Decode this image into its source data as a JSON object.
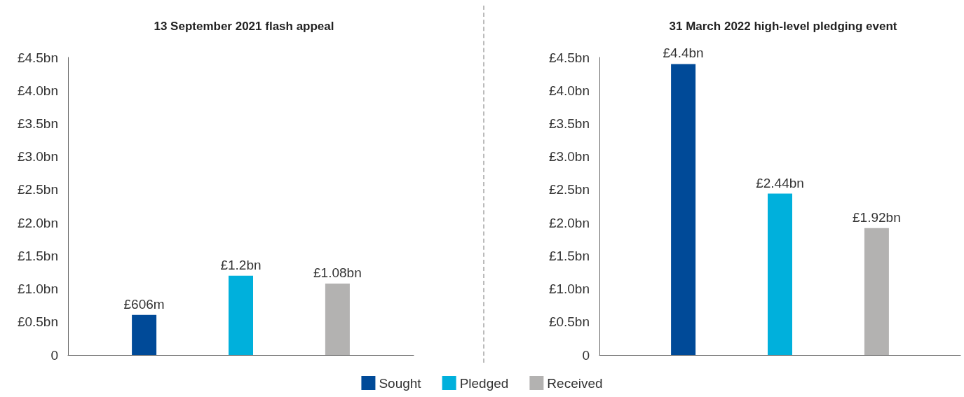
{
  "chart_data": [
    {
      "type": "bar",
      "title": "13 September 2021 flash appeal",
      "categories": [
        null
      ],
      "series": [
        {
          "name": "Sought",
          "color": "#004a98",
          "values": [
            606000000
          ],
          "value_labels": [
            "£606m"
          ]
        },
        {
          "name": "Pledged",
          "color": "#00b0dc",
          "values": [
            1200000000
          ],
          "value_labels": [
            "£1.2bn"
          ]
        },
        {
          "name": "Received",
          "color": "#b3b2b1",
          "values": [
            1080000000
          ],
          "value_labels": [
            "£1.08bn"
          ]
        }
      ],
      "ylim": [
        0,
        4500000000
      ],
      "yticks": [
        {
          "value": 0,
          "label": "0"
        },
        {
          "value": 500000000,
          "label": "£0.5bn"
        },
        {
          "value": 1000000000,
          "label": "£1.0bn"
        },
        {
          "value": 1500000000,
          "label": "£1.5bn"
        },
        {
          "value": 2000000000,
          "label": "£2.0bn"
        },
        {
          "value": 2500000000,
          "label": "£2.5bn"
        },
        {
          "value": 3000000000,
          "label": "£3.0bn"
        },
        {
          "value": 3500000000,
          "label": "£3.5bn"
        },
        {
          "value": 4000000000,
          "label": "£4.0bn"
        },
        {
          "value": 4500000000,
          "label": "£4.5bn"
        }
      ],
      "grid": false,
      "legend": "bottom"
    },
    {
      "type": "bar",
      "title": "31 March 2022 high-level pledging event",
      "categories": [
        null
      ],
      "series": [
        {
          "color": "#004a98",
          "values": [
            4400000000
          ],
          "value_labels": [
            "£4.4bn"
          ]
        },
        {
          "color": "#00b0dc",
          "values": [
            2440000000
          ],
          "value_labels": [
            "£2.44bn"
          ]
        },
        {
          "color": "#b3b2b1",
          "values": [
            1920000000
          ],
          "value_labels": [
            "£1.92bn"
          ]
        }
      ],
      "ylim": [
        0,
        4500000000
      ],
      "yticks": [
        {
          "value": 0,
          "label": "0"
        },
        {
          "value": 500000000,
          "label": "£0.5bn"
        },
        {
          "value": 1000000000,
          "label": "£1.0bn"
        },
        {
          "value": 1500000000,
          "label": "£1.5bn"
        },
        {
          "value": 2000000000,
          "label": "£2.0bn"
        },
        {
          "value": 2500000000,
          "label": "£2.5bn"
        },
        {
          "value": 3000000000,
          "label": "£3.0bn"
        },
        {
          "value": 3500000000,
          "label": "£3.5bn"
        },
        {
          "value": 4000000000,
          "label": "£4.0bn"
        },
        {
          "value": 4500000000,
          "label": "£4.5bn"
        }
      ],
      "grid": false
    }
  ]
}
